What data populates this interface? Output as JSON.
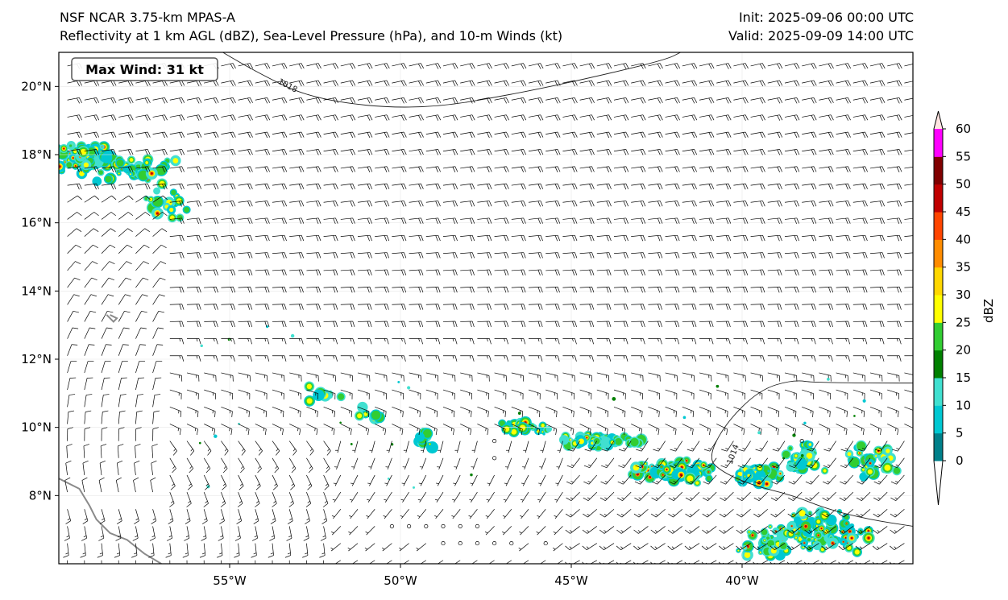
{
  "title": {
    "left_line1": "NSF NCAR 3.75-km MPAS-A",
    "left_line2": "Reflectivity at 1 km AGL (dBZ), Sea-Level Pressure (hPa), and 10-m Winds (kt)",
    "right_line1": "Init: 2025-09-06 00:00 UTC",
    "right_line2": "Valid: 2025-09-09 14:00 UTC"
  },
  "badge": {
    "text": "Max Wind: 31 kt"
  },
  "map": {
    "lon_range": [
      -60,
      -35
    ],
    "lat_range": [
      6,
      21
    ],
    "lon_ticks": [
      {
        "value": -55,
        "label": "55°W"
      },
      {
        "value": -50,
        "label": "50°W"
      },
      {
        "value": -45,
        "label": "45°W"
      },
      {
        "value": -40,
        "label": "40°W"
      }
    ],
    "lat_ticks": [
      {
        "value": 20,
        "label": "20°N"
      },
      {
        "value": 18,
        "label": "18°N"
      },
      {
        "value": 16,
        "label": "16°N"
      },
      {
        "value": 14,
        "label": "14°N"
      },
      {
        "value": 12,
        "label": "12°N"
      },
      {
        "value": 10,
        "label": "10°N"
      },
      {
        "value": 8,
        "label": "8°N"
      }
    ],
    "isobars": [
      {
        "label": "1018",
        "points": [
          [
            -55.2,
            21
          ],
          [
            -54.2,
            20.4
          ],
          [
            -52.5,
            19.6
          ],
          [
            -49.5,
            19.3
          ],
          [
            -46.5,
            19.8
          ],
          [
            -43.8,
            20.4
          ],
          [
            -42.2,
            20.8
          ],
          [
            -41.8,
            21
          ]
        ]
      },
      {
        "label": "1014",
        "points": [
          [
            -35,
            11.3
          ],
          [
            -37.8,
            11.3
          ],
          [
            -38.5,
            11.4
          ],
          [
            -39.5,
            11.1
          ],
          [
            -40.5,
            10.1
          ],
          [
            -41,
            9.1
          ],
          [
            -40.6,
            8.7
          ],
          [
            -39.7,
            8.3
          ],
          [
            -38.5,
            8.0
          ],
          [
            -37.5,
            7.6
          ],
          [
            -36.3,
            7.3
          ],
          [
            -35,
            7.1
          ]
        ]
      }
    ],
    "isobar_labels": [
      {
        "text": "1018",
        "lon": -53.6,
        "lat": 20.1
      },
      {
        "text": "1014",
        "lon": -40.3,
        "lat": 8.9
      }
    ],
    "coastlines": [
      [
        [
          -60,
          8.5
        ],
        [
          -59.4,
          8.2
        ],
        [
          -59.1,
          7.7
        ],
        [
          -58.9,
          7.3
        ],
        [
          -58.5,
          6.9
        ],
        [
          -58.0,
          6.7
        ],
        [
          -57.5,
          6.3
        ],
        [
          -57.0,
          6.0
        ]
      ],
      [
        [
          -58.6,
          13.3
        ],
        [
          -58.4,
          13.1
        ],
        [
          -58.3,
          13.2
        ],
        [
          -58.5,
          13.3
        ]
      ]
    ],
    "calm_points": [
      [
        -47.1,
        9.5
      ],
      [
        -47.1,
        9.0
      ],
      [
        -50.0,
        7.0
      ],
      [
        -49.5,
        7.0
      ],
      [
        -49.0,
        7.0
      ],
      [
        -48.5,
        7.0
      ],
      [
        -48.0,
        7.0
      ],
      [
        -48.9,
        6.5
      ],
      [
        -48.5,
        6.5
      ],
      [
        -48.0,
        6.5
      ],
      [
        -47.5,
        6.5
      ],
      [
        -47.0,
        6.5
      ],
      [
        -45.6,
        6.5
      ],
      [
        -38.2,
        9.5
      ]
    ]
  },
  "colorbar": {
    "label": "dBZ",
    "levels": [
      0,
      5,
      10,
      15,
      20,
      25,
      30,
      35,
      40,
      45,
      50,
      55,
      60
    ],
    "colors": [
      "#00808a",
      "#00c8d2",
      "#40e0d0",
      "#008000",
      "#32cd32",
      "#ffff00",
      "#ffd700",
      "#ff8c00",
      "#ff4500",
      "#c00000",
      "#800000",
      "#ff00ff",
      "#ffe4e1"
    ]
  }
}
